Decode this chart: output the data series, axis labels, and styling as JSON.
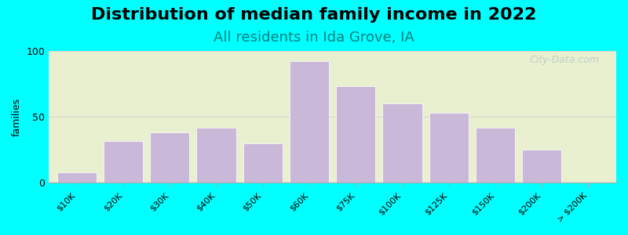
{
  "title": "Distribution of median family income in 2022",
  "subtitle": "All residents in Ida Grove, IA",
  "categories": [
    "$10K",
    "$20K",
    "$30K",
    "$40K",
    "$50K",
    "$60K",
    "$75K",
    "$100K",
    "$125K",
    "$150K",
    "$200K",
    "> $200K"
  ],
  "values": [
    8,
    32,
    38,
    42,
    30,
    92,
    73,
    60,
    53,
    42,
    25,
    0
  ],
  "bar_color": "#c9b8d8",
  "background_color": "#00ffff",
  "plot_bg_start": "#e8f0d0",
  "plot_bg_end": "#f0f0f8",
  "ylabel": "families",
  "ylim": [
    0,
    100
  ],
  "yticks": [
    0,
    50,
    100
  ],
  "title_fontsize": 16,
  "subtitle_fontsize": 13,
  "subtitle_color": "#008080",
  "watermark": "City-Data.com"
}
